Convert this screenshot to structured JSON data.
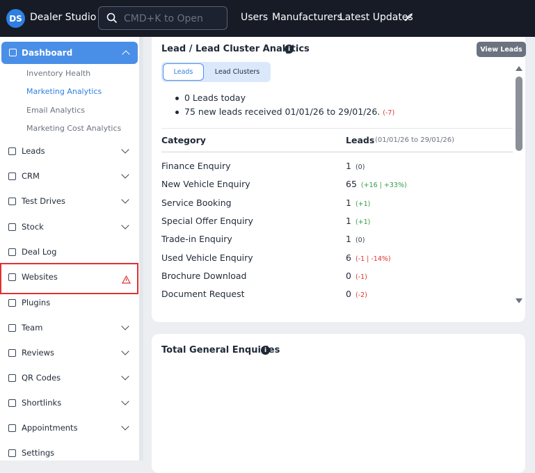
{
  "header": {
    "logo": "DS",
    "brand": "Dealer Studio",
    "search_placeholder": "CMD+K to Open",
    "nav": [
      "Users",
      "Manufacturers",
      "Latest Updates"
    ]
  },
  "sidebar": {
    "active": "Dashboard",
    "sub_items": [
      "Inventory Health",
      "Marketing Analytics",
      "Email Analytics",
      "Marketing Cost Analytics"
    ],
    "items": [
      "Leads",
      "CRM",
      "Test Drives",
      "Stock",
      "Deal Log",
      "Websites",
      "Plugins",
      "Team",
      "Reviews",
      "QR Codes",
      "Shortlinks",
      "Appointments",
      "Settings"
    ]
  },
  "lead_panel": {
    "title": "Lead / Lead Cluster Analytics",
    "button": "View Leads",
    "tabs": [
      "Leads",
      "Lead Clusters"
    ],
    "summary": [
      "0 Leads today",
      "75 new leads received 01/01/26 to 29/01/26."
    ],
    "summary_change": "(-7)",
    "table": {
      "headers": [
        "Category",
        "Leads"
      ],
      "period": "(01/01/26 to 29/01/26)",
      "rows": [
        {
          "category": "Finance Enquiry",
          "leads": 1,
          "change": "(0)"
        },
        {
          "category": "New Vehicle Enquiry",
          "leads": 65,
          "change": "(+16 | +33%)"
        },
        {
          "category": "Service Booking",
          "leads": 1,
          "change": "(+1)"
        },
        {
          "category": "Special Offer Enquiry",
          "leads": 1,
          "change": "(+1)"
        },
        {
          "category": "Trade-in Enquiry",
          "leads": 1,
          "change": "(0)"
        },
        {
          "category": "Used Vehicle Enquiry",
          "leads": 6,
          "change": "(-1 | -14%)"
        },
        {
          "category": "Brochure Download",
          "leads": 0,
          "change": "(-1)"
        },
        {
          "category": "Document Request",
          "leads": 0,
          "change": "(-2)"
        }
      ]
    }
  },
  "enquiries_panel": {
    "title": "Total General Enquiries"
  }
}
